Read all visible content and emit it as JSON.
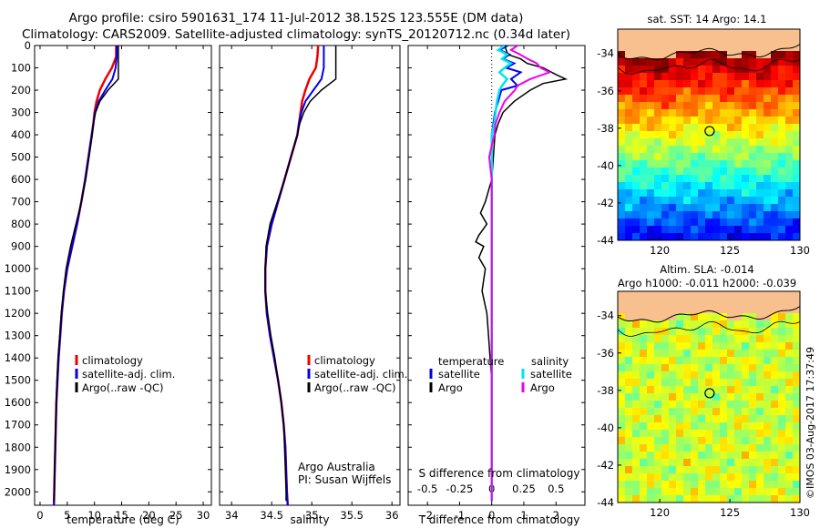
{
  "header": {
    "title_line1": "Argo profile: csiro 5901631_174 11-Jul-2012 38.152S 123.555E (DM data)",
    "title_line2": "Climatology: CARS2009. Satellite-adjusted climatology: synTS_20120712.nc (0.34d later)"
  },
  "chart_data": [
    {
      "type": "line",
      "xlabel": "temperature (deg C)",
      "ylabel": "",
      "xlim": [
        -1,
        31.5
      ],
      "ylim": [
        2060,
        0
      ],
      "xticks": [
        "0",
        "5",
        "10",
        "15",
        "20",
        "25",
        "30"
      ],
      "yticks": [
        "0",
        "100",
        "200",
        "300",
        "400",
        "500",
        "600",
        "700",
        "800",
        "900",
        "1000",
        "1100",
        "1200",
        "1300",
        "1400",
        "1500",
        "1600",
        "1700",
        "1800",
        "1900",
        "2000"
      ],
      "legend": [
        "climatology",
        "satellite-adj. clim.",
        "Argo(..raw -QC)"
      ],
      "colors": {
        "climatology": "#ee0000",
        "satellite": "#0000ee",
        "argo": "#000000"
      },
      "series": [
        {
          "name": "climatology",
          "depth": [
            0,
            50,
            100,
            150,
            200,
            250,
            300,
            350,
            400,
            500,
            600,
            700,
            800,
            900,
            1000,
            1100,
            1200,
            1300,
            1400,
            1500,
            1600,
            1700,
            1800,
            1900,
            2000,
            2060
          ],
          "values": [
            14.0,
            14.0,
            13.2,
            12.0,
            11.0,
            10.4,
            10.0,
            9.8,
            9.5,
            8.9,
            8.3,
            7.6,
            6.8,
            5.9,
            5.0,
            4.4,
            4.0,
            3.7,
            3.4,
            3.2,
            3.0,
            2.9,
            2.8,
            2.7,
            2.6,
            2.55
          ]
        },
        {
          "name": "satellite-adj. clim.",
          "depth": [
            0,
            50,
            100,
            150,
            200,
            250,
            300,
            350,
            400,
            500,
            600,
            700,
            800,
            900,
            1000,
            1100,
            1200,
            1300,
            1400,
            1500,
            1600,
            1700,
            1800,
            1900,
            2000,
            2060
          ],
          "values": [
            14.1,
            14.1,
            13.9,
            13.3,
            12.0,
            10.8,
            10.1,
            9.8,
            9.5,
            8.9,
            8.3,
            7.6,
            6.8,
            5.9,
            5.0,
            4.4,
            4.0,
            3.7,
            3.4,
            3.2,
            3.0,
            2.9,
            2.8,
            2.7,
            2.6,
            2.55
          ]
        },
        {
          "name": "Argo(..raw -QC)",
          "depth": [
            0,
            20,
            50,
            100,
            150,
            200,
            250,
            300,
            350,
            400,
            500,
            600,
            700,
            800,
            900,
            1000,
            1100,
            1200,
            1300,
            1400,
            1500,
            1600,
            1700,
            1800,
            1900,
            2000,
            2040
          ],
          "values": [
            14.4,
            14.4,
            14.4,
            14.4,
            14.4,
            12.5,
            11.0,
            10.2,
            9.8,
            9.6,
            9.0,
            8.4,
            7.6,
            6.6,
            5.6,
            4.8,
            4.3,
            3.9,
            3.6,
            3.3,
            3.1,
            2.95,
            2.85,
            2.75,
            2.65,
            2.6,
            2.55
          ]
        }
      ]
    },
    {
      "type": "line",
      "xlabel": "salinity",
      "xlim": [
        33.85,
        36.1
      ],
      "ylim": [
        2060,
        0
      ],
      "xticks": [
        "34",
        "34.5",
        "35",
        "35.5",
        "36"
      ],
      "legend": [
        "climatology",
        "satellite-adj. clim.",
        "Argo(..raw -QC)"
      ],
      "annotation": [
        "Argo Australia",
        "PI: Susan Wijffels"
      ],
      "series": [
        {
          "name": "climatology",
          "depth": [
            0,
            50,
            100,
            150,
            200,
            250,
            300,
            350,
            400,
            500,
            600,
            700,
            800,
            900,
            1000,
            1100,
            1200,
            1300,
            1400,
            1500,
            1600,
            1700,
            1800,
            1900,
            2000,
            2060
          ],
          "values": [
            35.08,
            35.07,
            35.05,
            34.97,
            34.92,
            34.88,
            34.86,
            34.84,
            34.82,
            34.74,
            34.66,
            34.58,
            34.5,
            34.44,
            34.42,
            34.42,
            34.44,
            34.48,
            34.53,
            34.58,
            34.62,
            34.65,
            34.67,
            34.68,
            34.69,
            34.7
          ]
        },
        {
          "name": "satellite-adj. clim.",
          "depth": [
            0,
            50,
            100,
            150,
            200,
            250,
            300,
            350,
            400,
            500,
            600,
            700,
            800,
            900,
            1000,
            1100,
            1200,
            1300,
            1400,
            1500,
            1600,
            1700,
            1800,
            1900,
            2000,
            2060
          ],
          "values": [
            35.15,
            35.15,
            35.15,
            35.12,
            35.02,
            34.92,
            34.87,
            34.84,
            34.82,
            34.74,
            34.66,
            34.58,
            34.5,
            34.44,
            34.42,
            34.42,
            34.44,
            34.48,
            34.53,
            34.58,
            34.62,
            34.65,
            34.67,
            34.68,
            34.69,
            34.7
          ]
        },
        {
          "name": "Argo(..raw -QC)",
          "depth": [
            0,
            20,
            50,
            100,
            150,
            200,
            250,
            300,
            350,
            400,
            500,
            600,
            700,
            800,
            900,
            1000,
            1100,
            1200,
            1300,
            1400,
            1500,
            1600,
            1700,
            1800,
            1900,
            2000,
            2040
          ],
          "values": [
            35.3,
            35.3,
            35.3,
            35.3,
            35.3,
            35.12,
            34.98,
            34.9,
            34.85,
            34.82,
            34.74,
            34.66,
            34.57,
            34.48,
            34.43,
            34.42,
            34.42,
            34.45,
            34.49,
            34.54,
            34.58,
            34.62,
            34.65,
            34.66,
            34.67,
            34.68,
            34.68
          ]
        }
      ]
    },
    {
      "type": "line",
      "xlabel_bottom": "T difference from climatology",
      "xlabel_top": "S difference from climatology",
      "xlim": [
        -2.6,
        2.9
      ],
      "ylim": [
        2060,
        0
      ],
      "xticks_T": [
        "-2",
        "-1",
        "0",
        "1",
        "2"
      ],
      "xticks_S": [
        "-0.5",
        "-0.25",
        "0",
        "0.25",
        "0.5"
      ],
      "legend_temperature": {
        "heading": "temperature",
        "items": [
          "satellite",
          "Argo"
        ]
      },
      "legend_salinity": {
        "heading": "salinity",
        "items": [
          "satellite",
          "Argo"
        ]
      },
      "series": [
        {
          "name": "temperature satellite",
          "depth": [
            0,
            20,
            40,
            60,
            80,
            100,
            120,
            150,
            180,
            200,
            250,
            300,
            350,
            400,
            2040
          ],
          "values": [
            0.5,
            0.25,
            0.55,
            0.35,
            0.7,
            0.45,
            0.9,
            0.6,
            0.8,
            0.3,
            0.2,
            0.1,
            0.05,
            0.0,
            0.0
          ]
        },
        {
          "name": "temperature Argo",
          "depth": [
            0,
            20,
            40,
            60,
            80,
            100,
            130,
            150,
            170,
            200,
            250,
            300,
            350,
            400,
            500,
            600,
            700,
            750,
            800,
            850,
            880,
            900,
            950,
            1000,
            1100,
            1200,
            1300,
            1400,
            1500,
            1600,
            1700,
            1800,
            1900,
            2000,
            2040
          ],
          "values": [
            0.4,
            0.45,
            0.5,
            0.9,
            1.1,
            1.6,
            2.0,
            2.3,
            1.6,
            1.2,
            0.7,
            0.35,
            0.2,
            0.1,
            0.05,
            0.0,
            -0.2,
            -0.35,
            -0.15,
            -0.4,
            -0.5,
            -0.25,
            -0.4,
            -0.2,
            -0.3,
            -0.15,
            -0.1,
            -0.05,
            0.0,
            0.0,
            0.0,
            0.0,
            0.0,
            0.0,
            0.0
          ]
        },
        {
          "name": "salinity satellite",
          "depth": [
            0,
            20,
            40,
            60,
            80,
            100,
            120,
            150,
            180,
            200,
            250,
            300,
            350,
            400,
            2040
          ],
          "values": [
            0.1,
            0.05,
            0.12,
            0.08,
            0.15,
            0.1,
            0.06,
            0.12,
            0.08,
            0.06,
            0.04,
            0.03,
            0.02,
            0.0,
            0.0
          ]
        },
        {
          "name": "salinity Argo",
          "depth": [
            0,
            20,
            40,
            60,
            80,
            100,
            120,
            150,
            180,
            200,
            250,
            300,
            350,
            400,
            450,
            500,
            600,
            700,
            2040
          ],
          "values": [
            0.2,
            0.15,
            0.22,
            0.28,
            0.35,
            0.38,
            0.45,
            0.3,
            0.2,
            0.18,
            0.1,
            0.06,
            0.03,
            0.02,
            0.0,
            -0.02,
            0.0,
            0.0,
            0.0
          ]
        }
      ]
    },
    {
      "type": "heatmap",
      "title": "sat. SST: 14 Argo: 14.1",
      "xlim": [
        117,
        130
      ],
      "ylim": [
        -44,
        -32.7
      ],
      "xticks": [
        "120",
        "125",
        "130"
      ],
      "yticks": [
        "-34",
        "-36",
        "-38",
        "-40",
        "-42",
        "-44"
      ],
      "marker": {
        "lon": 123.555,
        "lat": -38.152
      }
    },
    {
      "type": "heatmap",
      "title_line1": "Altim. SLA: -0.014",
      "title_line2": "Argo h1000: -0.011 h2000: -0.039",
      "xlim": [
        117,
        130
      ],
      "ylim": [
        -44,
        -32.7
      ],
      "xticks": [
        "120",
        "125",
        "130"
      ],
      "yticks": [
        "-34",
        "-36",
        "-38",
        "-40",
        "-42",
        "-44"
      ],
      "marker": {
        "lon": 123.555,
        "lat": -38.152
      }
    }
  ],
  "footer": {
    "credit": "©IMOS 03-Aug-2017 17:37:49"
  }
}
